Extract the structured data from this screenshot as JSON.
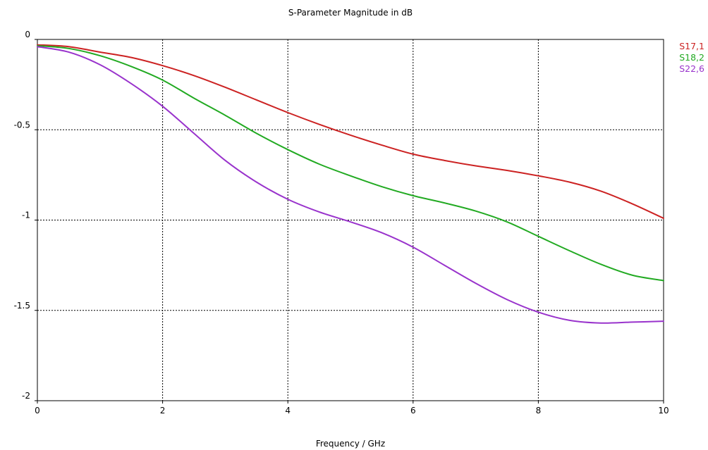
{
  "chart_data": {
    "type": "line",
    "title": "S-Parameter Magnitude in dB",
    "xlabel": "Frequency / GHz",
    "ylabel": "",
    "xlim": [
      0,
      10
    ],
    "ylim": [
      -2,
      0
    ],
    "x_ticks": [
      "0",
      "2",
      "4",
      "6",
      "8",
      "10"
    ],
    "y_ticks": [
      "0",
      "-0.5",
      "-1",
      "-1.5",
      "-2"
    ],
    "x_tick_values": [
      0,
      2,
      4,
      6,
      8,
      10
    ],
    "y_tick_values": [
      0,
      -0.5,
      -1,
      -1.5,
      -2
    ],
    "grid": true,
    "grid_style": "dotted",
    "legend_position": "right",
    "series": [
      {
        "name": "S17,1",
        "color": "#cc2222",
        "x": [
          0,
          0.5,
          1,
          1.5,
          2,
          2.5,
          3,
          3.5,
          4,
          4.5,
          5,
          5.5,
          6,
          6.5,
          7,
          7.5,
          8,
          8.5,
          9,
          9.5,
          10
        ],
        "y": [
          -0.03,
          -0.04,
          -0.07,
          -0.1,
          -0.145,
          -0.2,
          -0.265,
          -0.335,
          -0.405,
          -0.47,
          -0.53,
          -0.585,
          -0.635,
          -0.67,
          -0.7,
          -0.725,
          -0.755,
          -0.79,
          -0.84,
          -0.91,
          -0.99
        ]
      },
      {
        "name": "S18,2",
        "color": "#22aa22",
        "x": [
          0,
          0.5,
          1,
          1.5,
          2,
          2.5,
          3,
          3.5,
          4,
          4.5,
          5,
          5.5,
          6,
          6.5,
          7,
          7.5,
          8,
          8.5,
          9,
          9.5,
          10
        ],
        "y": [
          -0.035,
          -0.05,
          -0.09,
          -0.15,
          -0.225,
          -0.325,
          -0.42,
          -0.52,
          -0.61,
          -0.69,
          -0.755,
          -0.815,
          -0.865,
          -0.905,
          -0.95,
          -1.01,
          -1.09,
          -1.17,
          -1.245,
          -1.305,
          -1.335
        ]
      },
      {
        "name": "S22,6",
        "color": "#9933cc",
        "x": [
          0,
          0.5,
          1,
          1.5,
          2,
          2.5,
          3,
          3.5,
          4,
          4.5,
          5,
          5.5,
          6,
          6.5,
          7,
          7.5,
          8,
          8.5,
          9,
          9.5,
          10
        ],
        "y": [
          -0.04,
          -0.07,
          -0.14,
          -0.245,
          -0.37,
          -0.52,
          -0.67,
          -0.79,
          -0.885,
          -0.955,
          -1.01,
          -1.07,
          -1.15,
          -1.25,
          -1.35,
          -1.44,
          -1.51,
          -1.555,
          -1.57,
          -1.565,
          -1.56
        ]
      }
    ]
  }
}
